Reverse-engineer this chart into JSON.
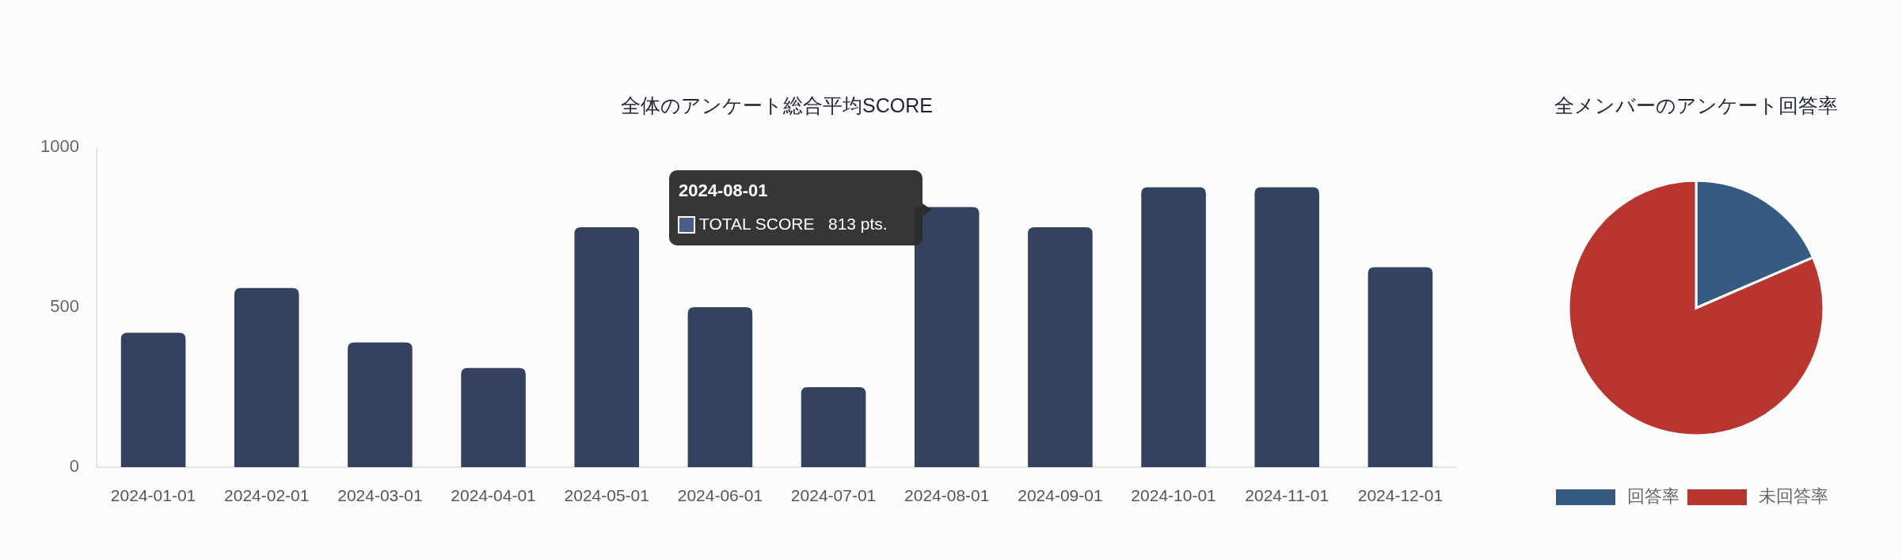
{
  "chart_data": [
    {
      "type": "bar",
      "title": "全体のアンケート総合平均SCORE",
      "categories": [
        "2024-01-01",
        "2024-02-01",
        "2024-03-01",
        "2024-04-01",
        "2024-05-01",
        "2024-06-01",
        "2024-07-01",
        "2024-08-01",
        "2024-09-01",
        "2024-10-01",
        "2024-11-01",
        "2024-12-01"
      ],
      "values": [
        420,
        560,
        390,
        310,
        750,
        500,
        250,
        813,
        750,
        875,
        875,
        625
      ],
      "color": "#34425f",
      "ylim": [
        0,
        1000
      ],
      "yticks": [
        0,
        500,
        1000
      ],
      "annotations": [
        "2024-08-01",
        "TOTAL SCORE   813 pts."
      ]
    },
    {
      "type": "pie",
      "title": "全メンバーのアンケート回答率",
      "categories": [
        "回答率",
        "未回答率"
      ],
      "values": [
        18.5,
        81.5
      ],
      "colors": [
        "#365a82",
        "#b83530"
      ],
      "legend": "bottom"
    }
  ]
}
